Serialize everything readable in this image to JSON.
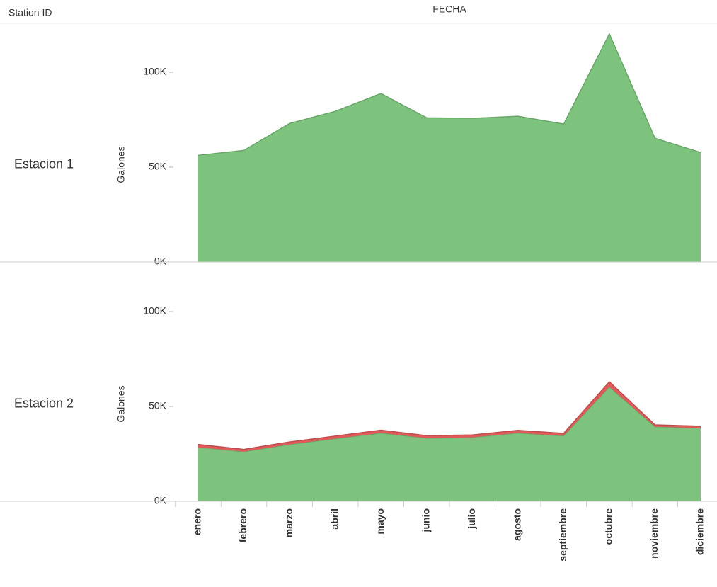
{
  "row_header": "Station ID",
  "column_header": "FECHA",
  "chart_data": [
    {
      "type": "area",
      "title": "Estacion 1",
      "y_label": "Galones",
      "series": [
        {
          "color": "#7dc27d",
          "values": [
            56200,
            58800,
            73000,
            79400,
            88800,
            76000,
            75700,
            76800,
            72700,
            120200,
            65200,
            57700
          ]
        }
      ],
      "ylim": [
        0,
        125000
      ],
      "yticks": [
        {
          "value": 0,
          "label": "0K"
        },
        {
          "value": 50000,
          "label": "50K"
        },
        {
          "value": 100000,
          "label": "100K"
        }
      ]
    },
    {
      "type": "area",
      "title": "Estacion 2",
      "y_label": "Galones",
      "categories": [
        "enero",
        "febrero",
        "marzo",
        "abril",
        "mayo",
        "junio",
        "julio",
        "agosto",
        "septiembre",
        "octubre",
        "noviembre",
        "diciembre"
      ],
      "series": [
        {
          "color": "#7dc27d",
          "values": [
            28500,
            26200,
            30000,
            33000,
            36000,
            33300,
            33700,
            36000,
            34500,
            60300,
            39300,
            38600
          ]
        },
        {
          "color": "#e05a5a",
          "values": [
            1500,
            1200,
            1300,
            1400,
            1500,
            1300,
            1300,
            1400,
            1300,
            2700,
            1000,
            1000
          ]
        }
      ],
      "ylim": [
        0,
        125000
      ],
      "yticks": [
        {
          "value": 0,
          "label": "0K"
        },
        {
          "value": 50000,
          "label": "50K"
        },
        {
          "value": 100000,
          "label": "100K"
        }
      ]
    }
  ]
}
